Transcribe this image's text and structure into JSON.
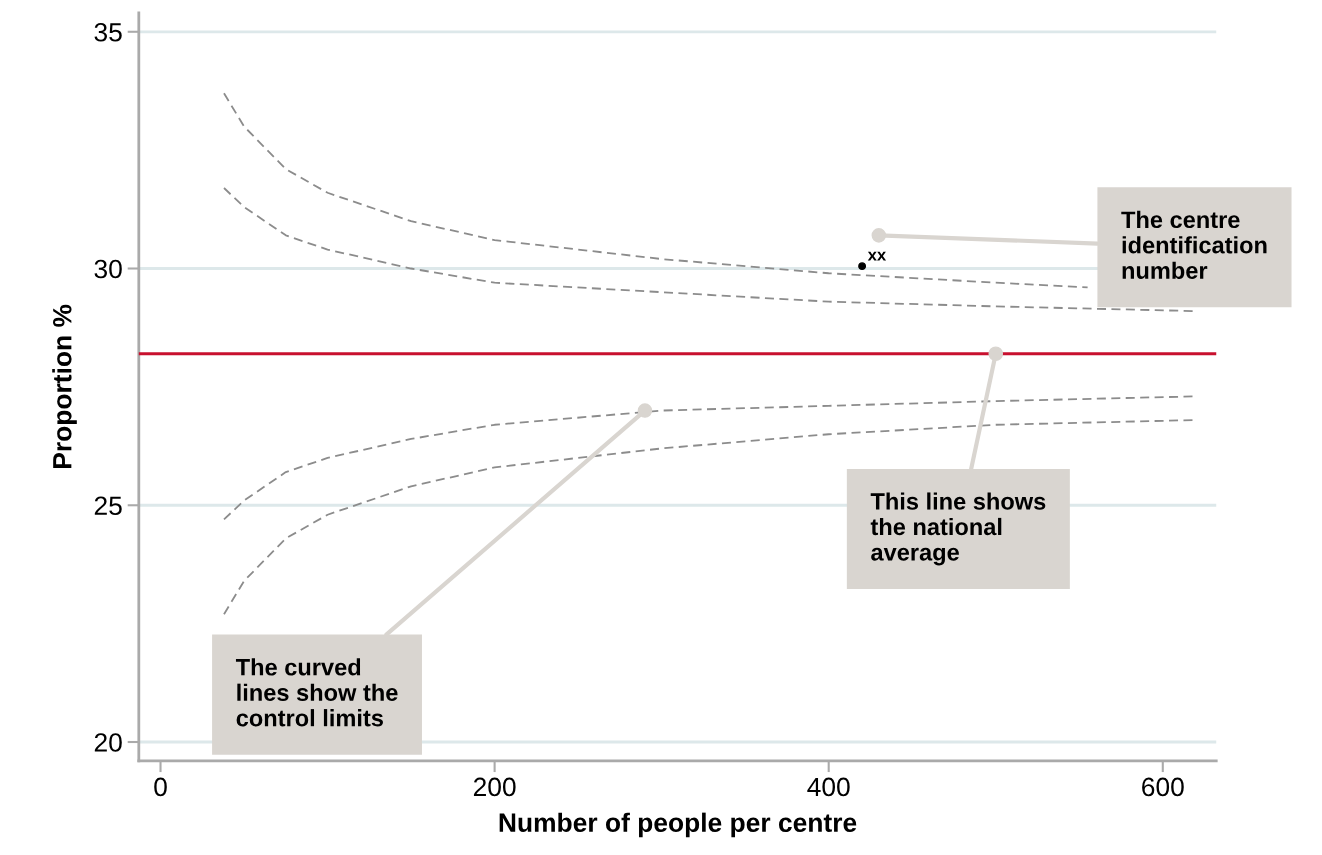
{
  "chart_data": {
    "type": "line",
    "xlabel": "Number of people per centre",
    "ylabel": "Proportion %",
    "xlim": [
      -13,
      632
    ],
    "ylim": [
      19.6,
      35.4
    ],
    "xticks": [
      0,
      200,
      400,
      600
    ],
    "yticks": [
      20,
      25,
      30,
      35
    ],
    "grid": "y",
    "legend": false,
    "line_style": "dashed",
    "marker": "none",
    "series": [
      {
        "color": "#8c8c8c",
        "x": [
          38,
          50,
          75,
          100,
          150,
          200,
          300,
          400,
          500,
          555
        ],
        "values": [
          33.7,
          33.0,
          32.1,
          31.6,
          31.0,
          30.6,
          30.2,
          29.9,
          29.7,
          29.6
        ]
      },
      {
        "color": "#8c8c8c",
        "x": [
          38,
          50,
          75,
          100,
          150,
          200,
          300,
          400,
          500,
          620
        ],
        "values": [
          31.7,
          31.3,
          30.7,
          30.4,
          30.0,
          29.7,
          29.5,
          29.3,
          29.2,
          29.1
        ]
      },
      {
        "color": "#8c8c8c",
        "x": [
          38,
          50,
          75,
          100,
          150,
          200,
          300,
          400,
          500,
          620
        ],
        "values": [
          24.7,
          25.1,
          25.7,
          26.0,
          26.4,
          26.7,
          27.0,
          27.1,
          27.2,
          27.3
        ]
      },
      {
        "color": "#8c8c8c",
        "x": [
          38,
          50,
          75,
          100,
          150,
          200,
          300,
          400,
          500,
          620
        ],
        "values": [
          22.7,
          23.4,
          24.3,
          24.8,
          25.4,
          25.8,
          26.2,
          26.5,
          26.7,
          26.8
        ]
      },
      {
        "type": "scatter",
        "marker": "circle",
        "color": "#000000",
        "x": [
          420
        ],
        "values": [
          30.05
        ],
        "value_labels": [
          "xx"
        ]
      }
    ],
    "ref_lines": [
      {
        "axis": "y",
        "value": 28.2,
        "color": "#c8102e",
        "line_style": "solid"
      }
    ],
    "annotations": [
      {
        "text": "The centre identification number",
        "x": 430,
        "y": 30.7
      },
      {
        "text": "The curved lines show the control limits",
        "x": 290,
        "y": 27.0
      },
      {
        "text": "This line shows the national average",
        "x": 500,
        "y": 28.2
      }
    ]
  }
}
